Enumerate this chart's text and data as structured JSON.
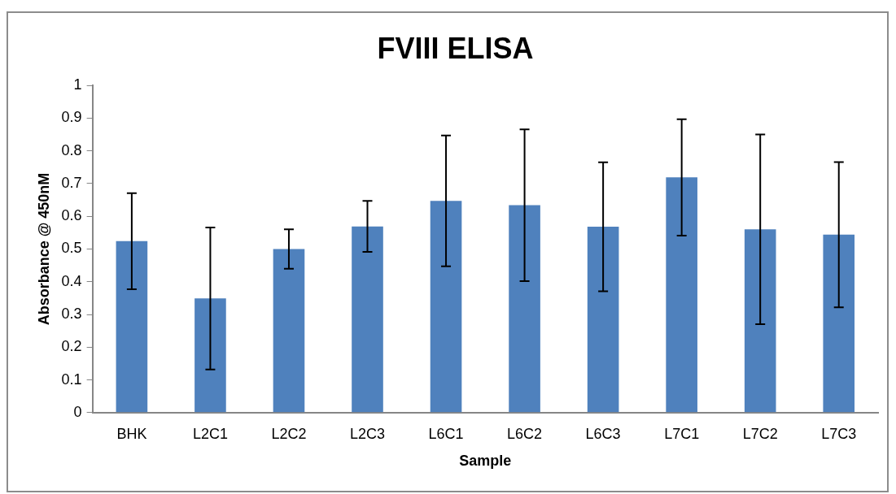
{
  "chart_data": {
    "type": "bar",
    "title": "FVIII ELISA",
    "xlabel": "Sample",
    "ylabel": "Absorbance @ 450nM",
    "categories": [
      "BHK",
      "L2C1",
      "L2C2",
      "L2C3",
      "L6C1",
      "L6C2",
      "L6C3",
      "L7C1",
      "L7C2",
      "L7C3"
    ],
    "values": [
      0.524,
      0.349,
      0.5,
      0.569,
      0.647,
      0.634,
      0.568,
      0.719,
      0.56,
      0.544
    ],
    "errors": [
      0.147,
      0.217,
      0.06,
      0.078,
      0.2,
      0.232,
      0.197,
      0.178,
      0.29,
      0.222
    ],
    "color": "#4f81bd",
    "ylim": [
      0,
      1
    ],
    "yticks": [
      0,
      0.1,
      0.2,
      0.3,
      0.4,
      0.5,
      0.6,
      0.7,
      0.8,
      0.9,
      1
    ],
    "grid": false,
    "legend": false
  }
}
